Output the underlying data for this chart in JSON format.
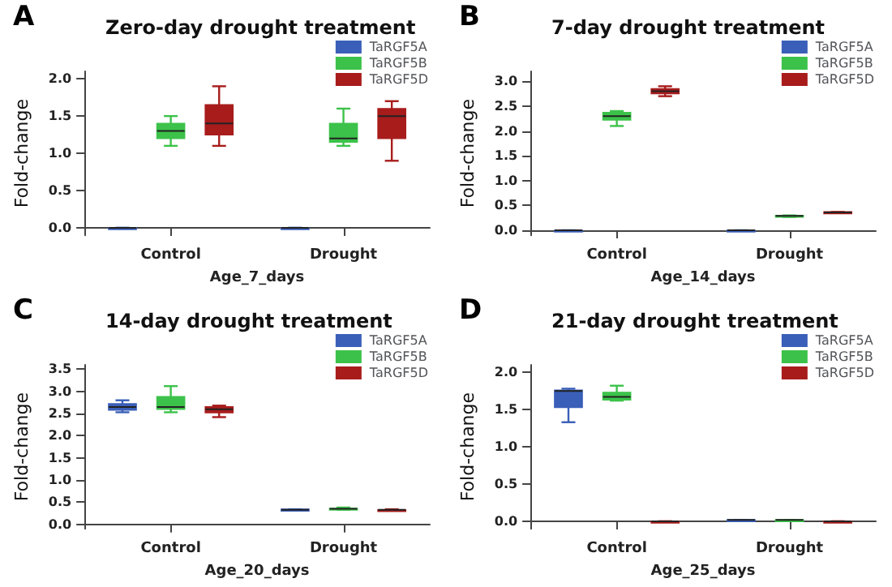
{
  "chart_data": [
    {
      "type": "box",
      "title": "Zero-day drought treatment",
      "annotations": [
        "A"
      ],
      "xlabel": "Age_7_days",
      "ylabel": "Fold-change",
      "categories": [
        "Control",
        "Drought"
      ],
      "ylim": [
        -0.1,
        2.1
      ],
      "yticks": [
        {
          "value": 0,
          "label": "0.0"
        },
        0.5,
        {
          "value": 1,
          "label": "1.0"
        },
        1.5,
        {
          "value": 2,
          "label": "2.0"
        }
      ],
      "grid": false,
      "legend": "top right",
      "series": [
        {
          "name": "TaRGF5A",
          "color": "#3a5fb8",
          "boxes": [
            {
              "low": 0,
              "q1": 0,
              "median": 0,
              "q3": 0,
              "high": 0
            },
            {
              "low": 0,
              "q1": 0,
              "median": 0,
              "q3": 0,
              "high": 0
            }
          ]
        },
        {
          "name": "TaRGF5B",
          "color": "#3cc24a",
          "boxes": [
            {
              "low": 1.1,
              "q1": 1.2,
              "median": 1.3,
              "q3": 1.4,
              "high": 1.5
            },
            {
              "low": 1.1,
              "q1": 1.15,
              "median": 1.2,
              "q3": 1.4,
              "high": 1.6
            }
          ]
        },
        {
          "name": "TaRGF5D",
          "color": "#a81c1c",
          "boxes": [
            {
              "low": 1.1,
              "q1": 1.25,
              "median": 1.4,
              "q3": 1.65,
              "high": 1.9
            },
            {
              "low": 0.9,
              "q1": 1.2,
              "median": 1.5,
              "q3": 1.6,
              "high": 1.7
            }
          ]
        }
      ]
    },
    {
      "type": "box",
      "title": "7-day drought treatment",
      "annotations": [
        "B"
      ],
      "xlabel": "Age_14_days",
      "ylabel": "Fold-change",
      "categories": [
        "Control",
        "Drought"
      ],
      "ylim": [
        -0.1,
        3.2
      ],
      "yticks": [
        {
          "value": 0,
          "label": "0.0"
        },
        0.5,
        {
          "value": 1,
          "label": "1.0"
        },
        1.5,
        {
          "value": 2,
          "label": "2.0"
        },
        2.5,
        {
          "value": 3,
          "label": "3.0"
        }
      ],
      "grid": false,
      "legend": "top right",
      "series": [
        {
          "name": "TaRGF5A",
          "color": "#3a5fb8",
          "boxes": [
            {
              "low": 0,
              "q1": 0,
              "median": 0,
              "q3": 0,
              "high": 0
            },
            {
              "low": 0,
              "q1": 0,
              "median": 0,
              "q3": 0,
              "high": 0
            }
          ]
        },
        {
          "name": "TaRGF5B",
          "color": "#3cc24a",
          "boxes": [
            {
              "low": 2.1,
              "q1": 2.22,
              "median": 2.3,
              "q3": 2.37,
              "high": 2.4
            },
            {
              "low": 0.27,
              "q1": 0.28,
              "median": 0.29,
              "q3": 0.3,
              "high": 0.3
            }
          ]
        },
        {
          "name": "TaRGF5D",
          "color": "#a81c1c",
          "boxes": [
            {
              "low": 2.7,
              "q1": 2.75,
              "median": 2.8,
              "q3": 2.85,
              "high": 2.9
            },
            {
              "low": 0.35,
              "q1": 0.35,
              "median": 0.36,
              "q3": 0.37,
              "high": 0.37
            }
          ]
        }
      ]
    },
    {
      "type": "box",
      "title": "14-day drought treatment",
      "annotations": [
        "C"
      ],
      "xlabel": "Age_20_days",
      "ylabel": "Fold-change",
      "categories": [
        "Control",
        "Drought"
      ],
      "ylim": [
        -0.1,
        3.6
      ],
      "yticks": [
        {
          "value": 0,
          "label": "0.0"
        },
        0.5,
        {
          "value": 1,
          "label": "1.0"
        },
        1.5,
        {
          "value": 2,
          "label": "2.0"
        },
        2.5,
        {
          "value": 3,
          "label": "3.0"
        },
        3.5
      ],
      "grid": false,
      "legend": "top right",
      "series": [
        {
          "name": "TaRGF5A",
          "color": "#3a5fb8",
          "boxes": [
            {
              "low": 2.53,
              "q1": 2.58,
              "median": 2.65,
              "q3": 2.72,
              "high": 2.8
            },
            {
              "low": 0.32,
              "q1": 0.33,
              "median": 0.33,
              "q3": 0.34,
              "high": 0.34
            }
          ]
        },
        {
          "name": "TaRGF5B",
          "color": "#3cc24a",
          "boxes": [
            {
              "low": 2.53,
              "q1": 2.6,
              "median": 2.65,
              "q3": 2.88,
              "high": 3.12
            },
            {
              "low": 0.33,
              "q1": 0.34,
              "median": 0.35,
              "q3": 0.36,
              "high": 0.38
            }
          ]
        },
        {
          "name": "TaRGF5D",
          "color": "#a81c1c",
          "boxes": [
            {
              "low": 2.42,
              "q1": 2.52,
              "median": 2.6,
              "q3": 2.65,
              "high": 2.68
            },
            {
              "low": 0.31,
              "q1": 0.32,
              "median": 0.33,
              "q3": 0.33,
              "high": 0.34
            }
          ]
        }
      ]
    },
    {
      "type": "box",
      "title": "21-day drought treatment",
      "annotations": [
        "D"
      ],
      "xlabel": "Age_25_days",
      "ylabel": "Fold-change",
      "categories": [
        "Control",
        "Drought"
      ],
      "ylim": [
        -0.1,
        2.1
      ],
      "yticks": [
        {
          "value": 0,
          "label": "0.0"
        },
        0.5,
        {
          "value": 1,
          "label": "1.0"
        },
        1.5,
        {
          "value": 2,
          "label": "2.0"
        }
      ],
      "grid": false,
      "legend": "top right",
      "series": [
        {
          "name": "TaRGF5A",
          "color": "#3a5fb8",
          "boxes": [
            {
              "low": 1.33,
              "q1": 1.53,
              "median": 1.75,
              "q3": 1.76,
              "high": 1.78
            },
            {
              "low": 0.02,
              "q1": 0.02,
              "median": 0.02,
              "q3": 0.02,
              "high": 0.02
            }
          ]
        },
        {
          "name": "TaRGF5B",
          "color": "#3cc24a",
          "boxes": [
            {
              "low": 1.62,
              "q1": 1.63,
              "median": 1.67,
              "q3": 1.73,
              "high": 1.82
            },
            {
              "low": 0.02,
              "q1": 0.02,
              "median": 0.02,
              "q3": 0.02,
              "high": 0.02
            }
          ]
        },
        {
          "name": "TaRGF5D",
          "color": "#a81c1c",
          "boxes": [
            {
              "low": 0,
              "q1": 0,
              "median": 0,
              "q3": 0,
              "high": 0
            },
            {
              "low": 0,
              "q1": 0,
              "median": 0,
              "q3": 0,
              "high": 0
            }
          ]
        }
      ]
    }
  ]
}
